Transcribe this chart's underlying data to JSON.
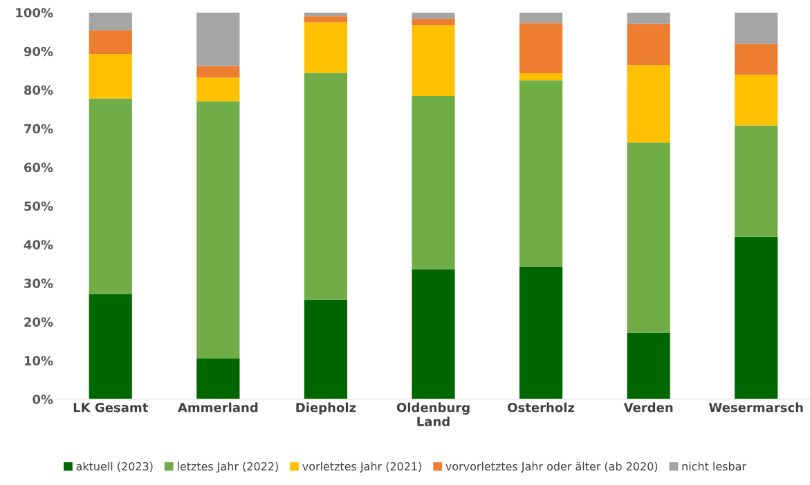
{
  "chart_data": {
    "type": "bar",
    "stacked": true,
    "categories": [
      "LK Gesamt",
      "Ammerland",
      "Diepholz",
      "Oldenburg\nLand",
      "Osterholz",
      "Verden",
      "Wesermarsch"
    ],
    "series": [
      {
        "name": "aktuell (2023)",
        "color": "#006600",
        "values": [
          27.2,
          10.6,
          25.8,
          33.6,
          34.3,
          17.2,
          42.0
        ]
      },
      {
        "name": "letztes Jahr (2022)",
        "color": "#70ad47",
        "values": [
          50.6,
          66.5,
          58.6,
          44.8,
          48.2,
          49.2,
          28.8
        ]
      },
      {
        "name": "vorletztes Jahr (2021)",
        "color": "#ffc000",
        "values": [
          11.5,
          6.1,
          13.1,
          18.4,
          1.8,
          20.0,
          13.1
        ]
      },
      {
        "name": "vorvorletztes Jahr oder älter (ab 2020)",
        "color": "#ed7d31",
        "values": [
          6.2,
          3.0,
          1.6,
          1.6,
          13.0,
          10.7,
          8.0
        ]
      },
      {
        "name": "nicht lesbar",
        "color": "#a5a5a5",
        "values": [
          4.5,
          13.8,
          0.9,
          1.6,
          2.7,
          2.9,
          8.1
        ]
      }
    ],
    "ylim": [
      0,
      100
    ],
    "yticks": [
      {
        "value": 0,
        "label": "0%"
      },
      {
        "value": 10,
        "label": "10%"
      },
      {
        "value": 20,
        "label": "20%"
      },
      {
        "value": 30,
        "label": "30%"
      },
      {
        "value": 40,
        "label": "40%"
      },
      {
        "value": 50,
        "label": "50%"
      },
      {
        "value": 60,
        "label": "60%"
      },
      {
        "value": 70,
        "label": "70%"
      },
      {
        "value": 80,
        "label": "80%"
      },
      {
        "value": 90,
        "label": "90%"
      },
      {
        "value": 100,
        "label": "100%"
      }
    ],
    "grid": false,
    "legend": "bottom"
  }
}
